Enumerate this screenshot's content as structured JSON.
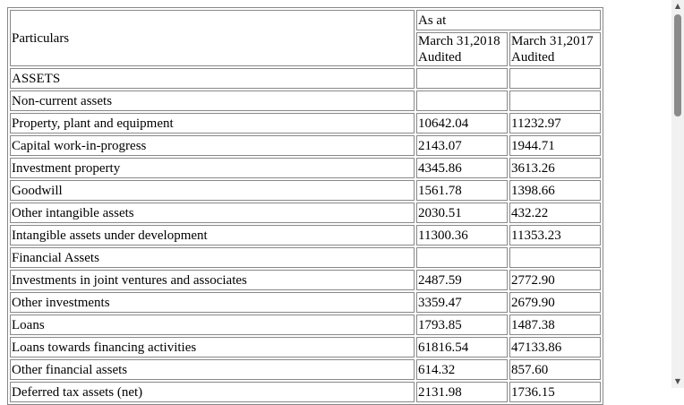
{
  "header": {
    "particulars": "Particulars",
    "as_at": "As at",
    "col1_date": "March 31,2018",
    "col1_status": "Audited",
    "col2_date": "March 31,2017",
    "col2_status": "Audited"
  },
  "rows": [
    {
      "label": "ASSETS",
      "v1": "",
      "v2": ""
    },
    {
      "label": "Non-current assets",
      "v1": "",
      "v2": ""
    },
    {
      "label": "Property, plant and equipment",
      "v1": "10642.04",
      "v2": "11232.97"
    },
    {
      "label": "Capital work-in-progress",
      "v1": "2143.07",
      "v2": "1944.71"
    },
    {
      "label": "Investment property",
      "v1": "4345.86",
      "v2": "3613.26"
    },
    {
      "label": "Goodwill",
      "v1": "1561.78",
      "v2": "1398.66"
    },
    {
      "label": "Other intangible assets",
      "v1": "2030.51",
      "v2": "432.22"
    },
    {
      "label": "Intangible assets under development",
      "v1": "11300.36",
      "v2": "11353.23"
    },
    {
      "label": "Financial Assets",
      "v1": "",
      "v2": ""
    },
    {
      "label": "Investments in joint ventures and associates",
      "v1": "2487.59",
      "v2": "2772.90"
    },
    {
      "label": "Other investments",
      "v1": "3359.47",
      "v2": "2679.90"
    },
    {
      "label": "Loans",
      "v1": "1793.85",
      "v2": "1487.38"
    },
    {
      "label": "Loans towards financing activities",
      "v1": "61816.54",
      "v2": "47133.86"
    },
    {
      "label": "Other financial assets",
      "v1": "614.32",
      "v2": "857.60"
    },
    {
      "label": "Deferred tax assets (net)",
      "v1": "2131.98",
      "v2": "1736.15"
    }
  ],
  "scrollbar": {
    "up_icon": "▲",
    "down_icon": "▼"
  }
}
